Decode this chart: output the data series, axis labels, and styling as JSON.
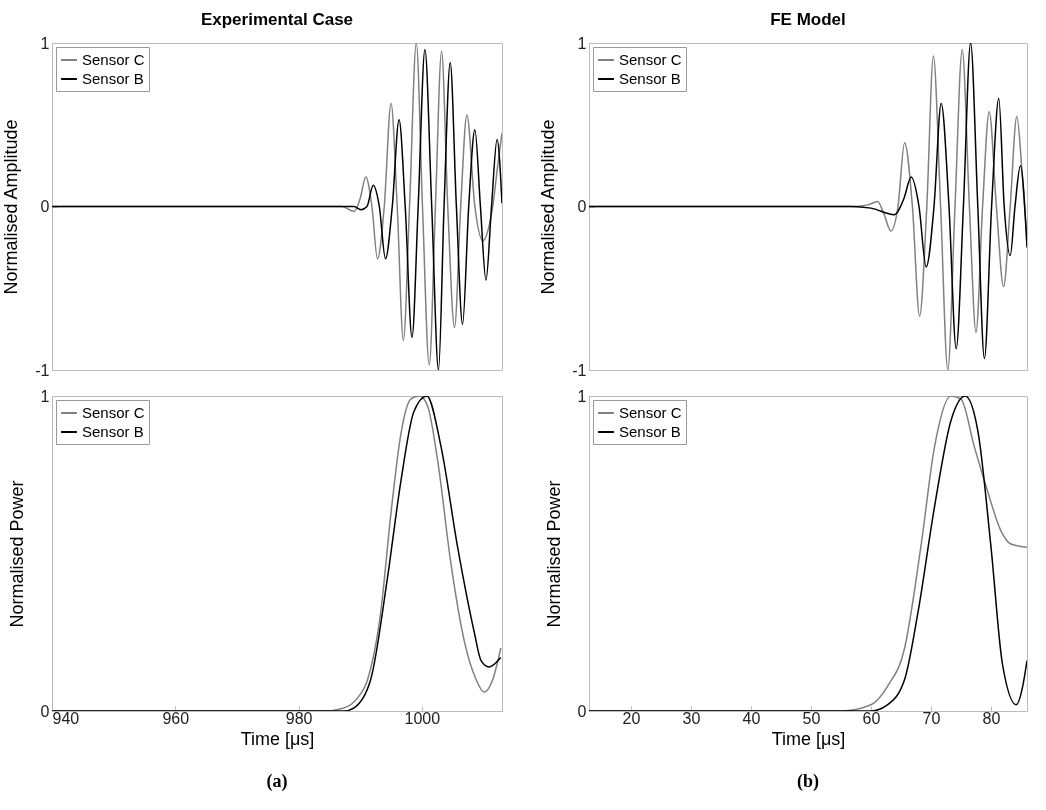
{
  "chart_data": [
    {
      "type": "line",
      "title": "Experimental Case",
      "ylabel": "Normalised Amplitude",
      "xlim": [
        940,
        1013
      ],
      "ylim": [
        -1,
        1
      ],
      "yticks": [
        -1,
        0,
        1
      ],
      "tick_labels": "y",
      "legend": "top left",
      "series": [
        {
          "name": "Sensor C",
          "color": "#808080",
          "x": [
            940,
            960,
            980,
            987,
            989,
            990,
            990.9,
            991.9,
            992.8,
            993.9,
            995.0,
            996.0,
            997.0,
            998.0,
            999.1,
            1000.1,
            1001.2,
            1002.2,
            1003.2,
            1004.2,
            1005.3,
            1006.3,
            1007.3,
            1008.6,
            1009.9,
            1010.9,
            1011.5,
            1012.3,
            1013
          ],
          "values": [
            0,
            0,
            0,
            0,
            -0.03,
            0.05,
            0.18,
            0,
            -0.32,
            0,
            0.63,
            0,
            -0.82,
            0,
            1.0,
            0,
            -0.97,
            0,
            0.95,
            0,
            -0.74,
            0,
            0.56,
            0,
            -0.21,
            -0.12,
            0,
            0.25,
            0.45
          ]
        },
        {
          "name": "Sensor B",
          "color": "#000000",
          "x": [
            940,
            960,
            980,
            989,
            990.1,
            991.1,
            992.1,
            993.1,
            994.1,
            995.2,
            996.3,
            997.3,
            998.4,
            999.4,
            1000.5,
            1001.6,
            1002.7,
            1003.6,
            1004.6,
            1005.6,
            1006.6,
            1007.6,
            1008.6,
            1009.5,
            1010.4,
            1011.3,
            1012.2,
            1013
          ],
          "values": [
            0,
            0,
            0,
            0,
            -0.02,
            0,
            0.13,
            0,
            -0.32,
            0,
            0.53,
            0,
            -0.8,
            0,
            0.96,
            0,
            -1.0,
            0,
            0.88,
            0,
            -0.72,
            0,
            0.47,
            0,
            -0.45,
            0,
            0.41,
            0.02
          ]
        }
      ]
    },
    {
      "type": "line",
      "title": "FE Model",
      "ylabel": "Normalised Amplitude",
      "xlim": [
        13,
        86
      ],
      "ylim": [
        -1,
        1
      ],
      "yticks": [
        -1,
        0,
        1
      ],
      "tick_labels": "y",
      "legend": "top left",
      "series": [
        {
          "name": "Sensor C",
          "color": "#808080",
          "x": [
            13,
            30,
            50,
            56.7,
            59.5,
            61.1,
            62.2,
            63.3,
            64.5,
            65.6,
            66.9,
            68.1,
            69.3,
            70.4,
            71.6,
            72.8,
            74.0,
            75.2,
            76.4,
            77.5,
            78.6,
            79.7,
            80.9,
            82.1,
            83.2,
            84.3,
            85.2,
            86
          ],
          "values": [
            0,
            0,
            0,
            0,
            0.01,
            0.03,
            -0.05,
            -0.15,
            0,
            0.39,
            0,
            -0.67,
            0,
            0.92,
            0,
            -1.0,
            0,
            0.96,
            0,
            -0.77,
            0,
            0.58,
            0,
            -0.49,
            0,
            0.55,
            0.2,
            -0.2
          ]
        },
        {
          "name": "Sensor B",
          "color": "#000000",
          "x": [
            13,
            30,
            50,
            56.7,
            60,
            63.9,
            65.5,
            66.7,
            68.0,
            69.2,
            70.5,
            71.7,
            73.0,
            74.2,
            75.4,
            76.6,
            77.8,
            78.9,
            80.1,
            81.3,
            82.2,
            83.2,
            84.0,
            84.9,
            86
          ],
          "values": [
            0,
            0,
            0,
            0,
            -0.01,
            -0.05,
            0.05,
            0.18,
            0,
            -0.37,
            0,
            0.63,
            0,
            -0.87,
            0,
            1.0,
            0,
            -0.93,
            0,
            0.66,
            0,
            -0.3,
            0,
            0.25,
            -0.25
          ]
        }
      ]
    },
    {
      "type": "line",
      "ylabel": "Normalised Power",
      "xlabel": "Time [μs]",
      "xlim": [
        940,
        1013
      ],
      "ylim": [
        0,
        1
      ],
      "xticks": [
        940,
        960,
        980,
        1000
      ],
      "yticks": [
        0,
        1
      ],
      "legend": "top left",
      "annotations": [
        "(a)"
      ],
      "series": [
        {
          "name": "Sensor C",
          "color": "#808080",
          "x": [
            940,
            960,
            984.1,
            987.4,
            989.5,
            991.2,
            993.3,
            995.0,
            996.6,
            998.2,
            999.6,
            1000.9,
            1002.6,
            1004.7,
            1006.9,
            1008.8,
            1010.1,
            1011.5,
            1012.8
          ],
          "values": [
            0,
            0,
            0,
            0.01,
            0.04,
            0.1,
            0.31,
            0.63,
            0.88,
            0.99,
            1.0,
            0.97,
            0.79,
            0.47,
            0.22,
            0.1,
            0.06,
            0.1,
            0.2
          ]
        },
        {
          "name": "Sensor B",
          "color": "#000000",
          "x": [
            940,
            960,
            987.4,
            989.0,
            991.7,
            994.4,
            996.6,
            998.7,
            1000.8,
            1003.1,
            1005.8,
            1008.5,
            1009.6,
            1010.9,
            1012.8
          ],
          "values": [
            0,
            0,
            0,
            0.01,
            0.1,
            0.42,
            0.73,
            0.95,
            1.0,
            0.84,
            0.52,
            0.25,
            0.16,
            0.14,
            0.17
          ]
        }
      ]
    },
    {
      "type": "line",
      "xlabel": "Time [μs]",
      "ylabel": "Normalised Power",
      "xlim": [
        13,
        86
      ],
      "ylim": [
        0,
        1
      ],
      "xticks": [
        20,
        30,
        40,
        50,
        60,
        70,
        80
      ],
      "yticks": [
        0,
        1
      ],
      "legend": "top left",
      "annotations": [
        "(b)"
      ],
      "series": [
        {
          "name": "Sensor C",
          "color": "#808080",
          "x": [
            13,
            30,
            55.0,
            60.0,
            62.8,
            65.6,
            68.3,
            70.6,
            73.3,
            75.0,
            77.2,
            79.4,
            81.7,
            83.3,
            86
          ],
          "values": [
            0,
            0,
            0,
            0.02,
            0.08,
            0.2,
            0.52,
            0.84,
            1.0,
            0.99,
            0.84,
            0.7,
            0.57,
            0.53,
            0.52
          ]
        },
        {
          "name": "Sensor B",
          "color": "#000000",
          "x": [
            13,
            30,
            60,
            62.8,
            65.6,
            67.8,
            70.6,
            73.3,
            75.7,
            77.8,
            80.0,
            81.9,
            84.2,
            85.3,
            86
          ],
          "values": [
            0,
            0,
            0,
            0.02,
            0.1,
            0.31,
            0.65,
            0.92,
            1.0,
            0.89,
            0.52,
            0.15,
            0.02,
            0.08,
            0.16
          ]
        }
      ]
    }
  ]
}
